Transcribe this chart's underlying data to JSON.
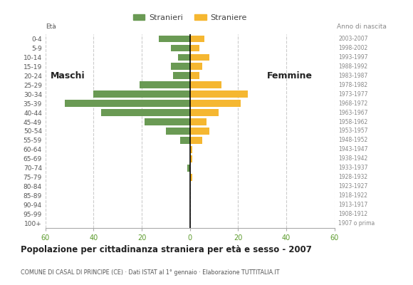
{
  "age_groups": [
    "100+",
    "95-99",
    "90-94",
    "85-89",
    "80-84",
    "75-79",
    "70-74",
    "65-69",
    "60-64",
    "55-59",
    "50-54",
    "45-49",
    "40-44",
    "35-39",
    "30-34",
    "25-29",
    "20-24",
    "15-19",
    "10-14",
    "5-9",
    "0-4"
  ],
  "birth_years": [
    "1907 o prima",
    "1908-1912",
    "1913-1917",
    "1918-1922",
    "1923-1927",
    "1928-1932",
    "1933-1937",
    "1938-1942",
    "1943-1947",
    "1948-1952",
    "1953-1957",
    "1958-1962",
    "1963-1967",
    "1968-1972",
    "1973-1977",
    "1978-1982",
    "1983-1987",
    "1988-1992",
    "1993-1997",
    "1998-2002",
    "2003-2007"
  ],
  "males": [
    0,
    0,
    0,
    0,
    0,
    0,
    1,
    0,
    0,
    4,
    10,
    19,
    37,
    52,
    40,
    21,
    7,
    8,
    5,
    8,
    13
  ],
  "females": [
    0,
    0,
    0,
    0,
    0,
    1,
    0,
    1,
    1,
    5,
    8,
    7,
    12,
    21,
    24,
    13,
    4,
    5,
    8,
    4,
    6
  ],
  "male_color": "#6a9a54",
  "female_color": "#f5b731",
  "xlim": 60,
  "title": "Popolazione per cittadinanza straniera per età e sesso - 2007",
  "subtitle": "COMUNE DI CASAL DI PRINCIPE (CE) · Dati ISTAT al 1° gennaio · Elaborazione TUTTITALIA.IT",
  "legend_male": "Stranieri",
  "legend_female": "Straniere",
  "label_eta": "Età",
  "label_anno": "Anno di nascita",
  "label_maschi": "Maschi",
  "label_femmine": "Femmine",
  "background_color": "#ffffff",
  "grid_color": "#cccccc",
  "tick_label_color": "#5a9a2a",
  "axis_label_color": "#555555",
  "birth_year_color": "#888888"
}
